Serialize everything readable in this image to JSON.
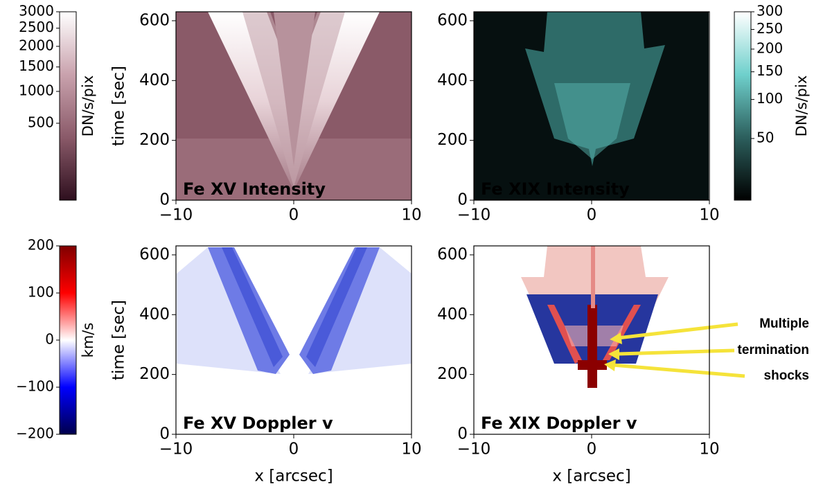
{
  "chart_data": [
    {
      "type": "heatmap",
      "panel_label": "Fe XV Intensity",
      "label_color": "#ffffff",
      "ylabel": "time [sec]",
      "xlim": [
        -10,
        10
      ],
      "ylim": [
        0,
        630
      ],
      "xticks": [
        {
          "value": -10,
          "label": "−10"
        },
        0,
        10
      ],
      "yticks": [
        0,
        200,
        400,
        600
      ],
      "colorbar": {
        "label": "DN/s/pix",
        "side": "left",
        "lim": [
          0,
          3000
        ],
        "gamma": 0.5,
        "ticks": [
          500,
          1000,
          1500,
          2000,
          2500,
          3000
        ],
        "colors": [
          "#2e0f1e",
          "#8a5a69",
          "#c9a2ad",
          "#ffffff"
        ]
      }
    },
    {
      "type": "heatmap",
      "panel_label": "Fe XIX Intensity",
      "label_color": "#ffffff",
      "xlim": [
        -10,
        10
      ],
      "ylim": [
        0,
        630
      ],
      "xticks": [
        {
          "value": -10,
          "label": "−10"
        },
        0,
        10
      ],
      "yticks": [
        0,
        200,
        400,
        600
      ],
      "colorbar": {
        "label": "DN/s/pix",
        "side": "right",
        "lim": [
          20,
          300
        ],
        "gamma": 0.5,
        "ticks": [
          50,
          100,
          150,
          200,
          250,
          300
        ],
        "colors": [
          "#000000",
          "#2c5f5d",
          "#6fd0cc",
          "#ffffff"
        ]
      }
    },
    {
      "type": "heatmap",
      "panel_label": "Fe XV Doppler v",
      "label_color": "#000000",
      "ylabel": "time [sec]",
      "xlabel": "x [arcsec]",
      "xlim": [
        -10,
        10
      ],
      "ylim": [
        0,
        630
      ],
      "xticks": [
        {
          "value": -10,
          "label": "−10"
        },
        0,
        10
      ],
      "yticks": [
        0,
        200,
        400,
        600
      ],
      "colorbar": {
        "label": "km/s",
        "side": "left",
        "lim": [
          -200,
          200
        ],
        "gamma": 1,
        "ticks": [
          {
            "value": -200,
            "label": "−200"
          },
          {
            "value": -100,
            "label": "−100"
          },
          0,
          100,
          200
        ],
        "colors": [
          "#00004c",
          "#0000ff",
          "#ffffff",
          "#ff0000",
          "#800000"
        ]
      }
    },
    {
      "type": "heatmap",
      "panel_label": "Fe XIX Doppler v",
      "label_color": "#000000",
      "xlabel": "x [arcsec]",
      "xlim": [
        -10,
        10
      ],
      "ylim": [
        0,
        630
      ],
      "xticks": [
        {
          "value": -10,
          "label": "−10"
        },
        0,
        10
      ],
      "yticks": [
        0,
        200,
        400,
        600
      ],
      "annotation_lines": [
        "Multiple",
        "termination",
        "shocks"
      ]
    }
  ]
}
